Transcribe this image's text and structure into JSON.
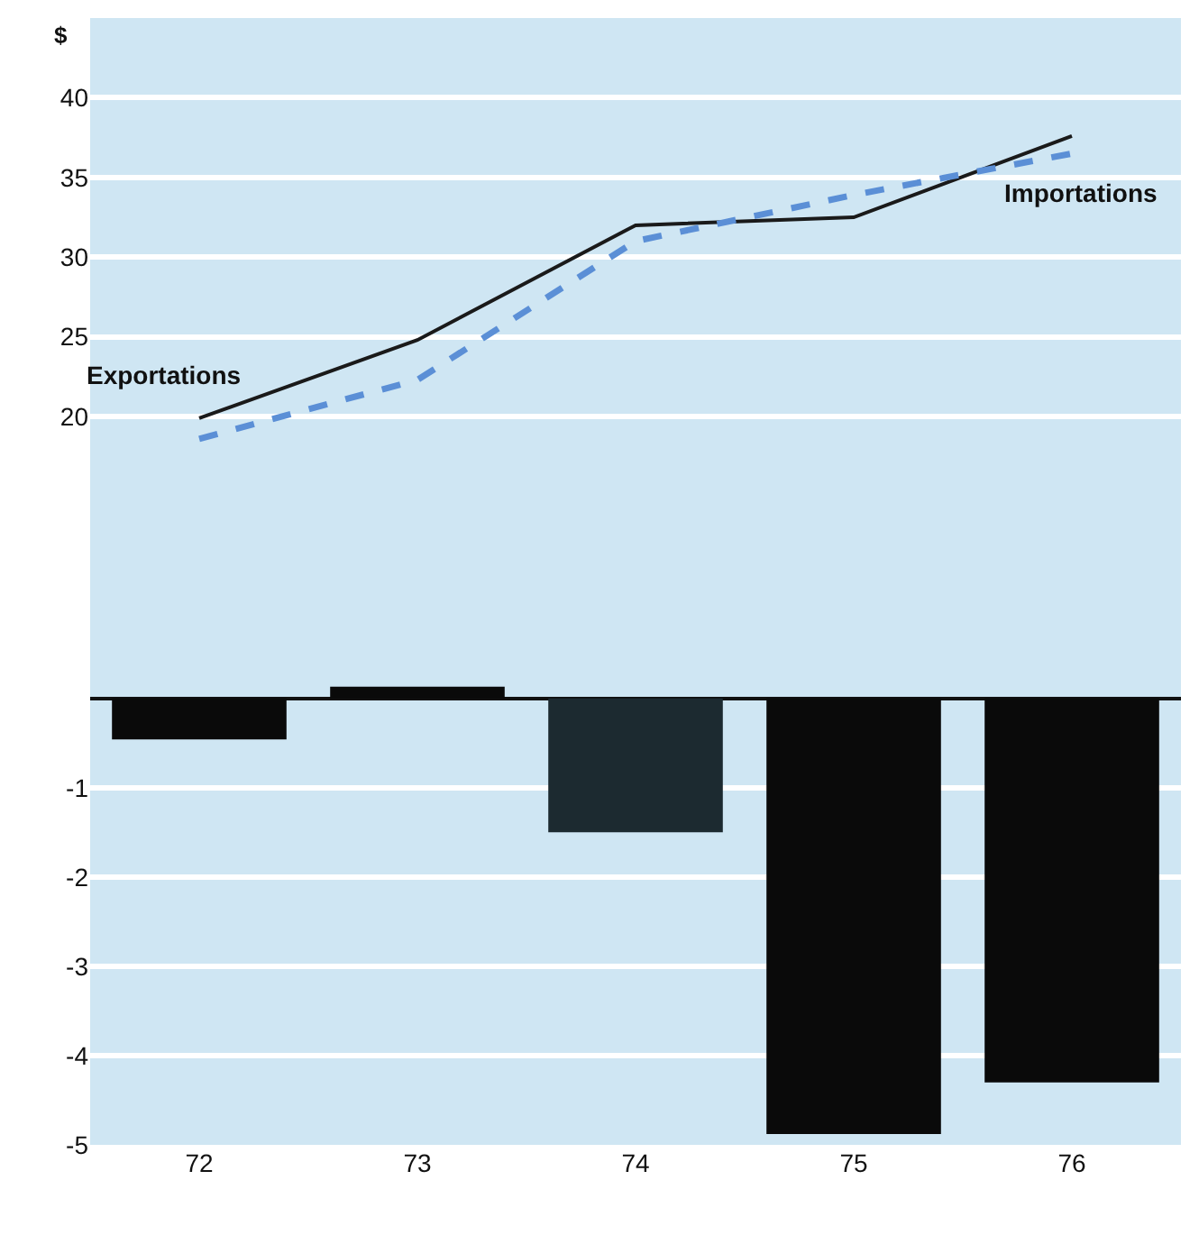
{
  "chart_data": [
    {
      "type": "line",
      "categories": [
        "72",
        "73",
        "74",
        "75",
        "76"
      ],
      "ylabel": "$",
      "ylim": [
        4,
        45
      ],
      "yticks": [
        20,
        25,
        30,
        35,
        40
      ],
      "grid": "y",
      "tick_labels": "y",
      "marker": "none",
      "series": [
        {
          "name": "Exportations",
          "color": "#1a1a1a",
          "line_style": "solid",
          "values": [
            19.9,
            24.8,
            32.0,
            32.5,
            37.6
          ]
        },
        {
          "name": "Importations",
          "color": "#5b8fd6",
          "line_style": "dashed",
          "values": [
            18.6,
            22.3,
            31.0,
            33.9,
            36.5
          ]
        }
      ]
    },
    {
      "type": "bar",
      "categories": [
        "72",
        "73",
        "74",
        "75",
        "76"
      ],
      "ylim": [
        -5,
        0.3
      ],
      "yticks": [
        -1,
        -2,
        -3,
        -4,
        -5
      ],
      "grid": "y",
      "values": [
        -0.46,
        0.13,
        -1.5,
        -4.88,
        -4.3
      ],
      "colors": [
        "#0a0a0a",
        "#0a0a0a",
        "#1c2a30",
        "#0a0a0a",
        "#0a0a0a"
      ]
    }
  ]
}
